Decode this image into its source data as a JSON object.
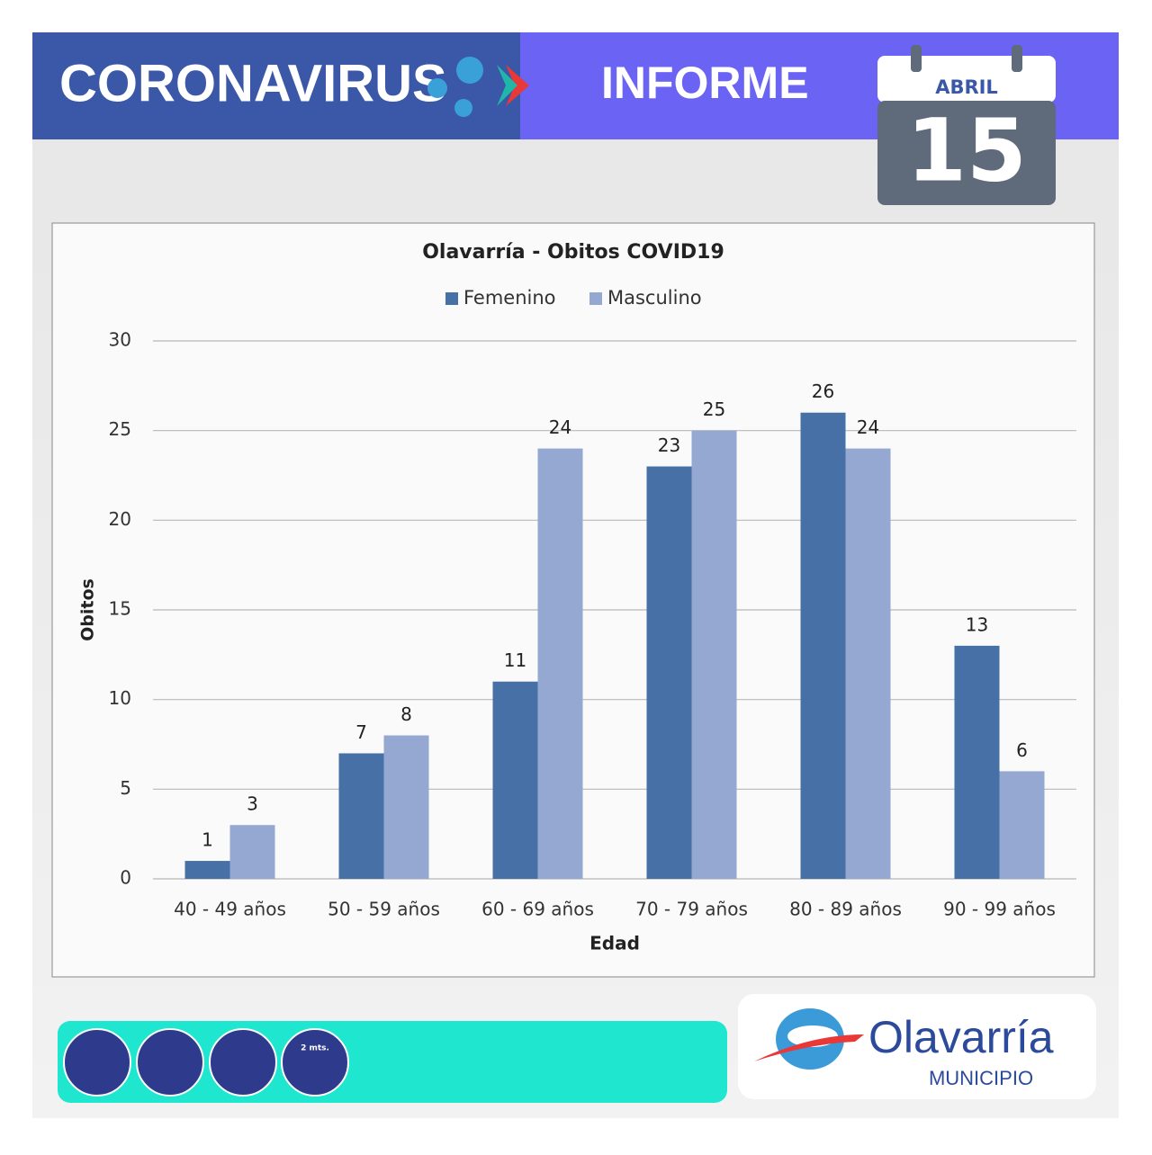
{
  "header": {
    "left_title": "CORONAVIRUS",
    "right_title": "INFORME",
    "month": "ABRIL",
    "day": "15"
  },
  "chart_data": {
    "type": "bar",
    "title": "Olavarría - Obitos COVID19",
    "xlabel": "Edad",
    "ylabel": "Obitos",
    "categories": [
      "40 - 49 años",
      "50 - 59 años",
      "60 - 69 años",
      "70 - 79 años",
      "80 - 89 años",
      "90 - 99 años"
    ],
    "series": [
      {
        "name": "Femenino",
        "color": "#4670a6",
        "values": [
          1,
          7,
          11,
          23,
          26,
          13
        ]
      },
      {
        "name": "Masculino",
        "color": "#94a8d1",
        "values": [
          3,
          8,
          24,
          25,
          24,
          6
        ]
      }
    ],
    "ylim": [
      0,
      30
    ],
    "yticks": [
      0,
      5,
      10,
      15,
      20,
      25,
      30
    ],
    "grid": true,
    "legend": "top"
  },
  "footer": {
    "distance_label": "2 mts.",
    "logo_name": "Olavarría",
    "logo_sub": "MUNICIPIO"
  }
}
